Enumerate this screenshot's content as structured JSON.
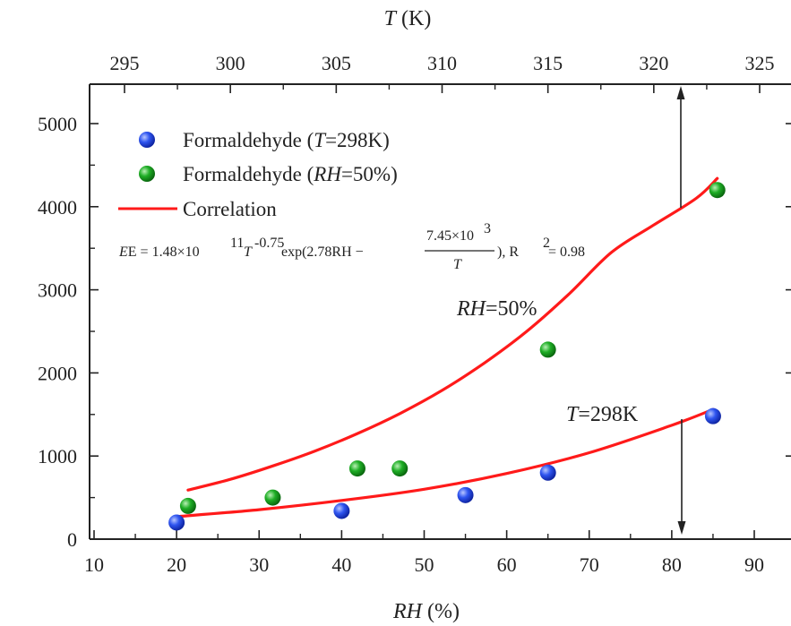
{
  "chart_data": {
    "type": "scatter",
    "x_bottom": {
      "label_var": "RH",
      "label_unit": " (%)",
      "range": [
        10,
        92
      ],
      "ticks": [
        10,
        20,
        30,
        40,
        50,
        60,
        70,
        80,
        90
      ]
    },
    "x_top": {
      "label_var": "T",
      "label_unit": " (K)",
      "range": [
        293.6,
        326.0
      ],
      "ticks": [
        295,
        300,
        305,
        310,
        315,
        320,
        325
      ]
    },
    "y": {
      "label": "",
      "range": [
        0,
        5000
      ],
      "ticks": [
        0,
        1000,
        2000,
        3000,
        4000,
        5000
      ]
    },
    "legend": {
      "position": "top-left",
      "entries": [
        {
          "pre": "Formaldehyde (",
          "var": "T",
          "post": "=298K)"
        },
        {
          "pre": "Formaldehyde (",
          "var": "RH",
          "post": "=50%)"
        },
        {
          "pre": "Correlation",
          "var": "",
          "post": ""
        }
      ]
    },
    "series": [
      {
        "name": "Formaldehyde (T=298K)",
        "axis": "RH",
        "color": "#1f3fe0",
        "marker": "sphere",
        "x": [
          20,
          40,
          55,
          65,
          85
        ],
        "y": [
          200,
          340,
          530,
          800,
          1480
        ]
      },
      {
        "name": "Formaldehyde (RH=50%)",
        "axis": "T",
        "color": "#16a01b",
        "marker": "sphere",
        "x": [
          298,
          302,
          306,
          308,
          315,
          323
        ],
        "y": [
          400,
          500,
          850,
          850,
          2280,
          4200
        ]
      },
      {
        "name": "Correlation",
        "color": "#ff1a1a",
        "line": true,
        "curves": [
          {
            "axis": "RH",
            "x": [
              20,
              30,
              40,
              50,
              60,
              70,
              80,
              85
            ],
            "y": [
              270,
              355,
              465,
              600,
              790,
              1040,
              1370,
              1560
            ]
          },
          {
            "axis": "T",
            "x": [
              298,
              300,
              302,
              304,
              306,
              308,
              310,
              312,
              314,
              316,
              318,
              320,
              322,
              323
            ],
            "y": [
              590,
              720,
              880,
              1060,
              1270,
              1510,
              1790,
              2120,
              2500,
              2950,
              3450,
              3780,
              4100,
              4340
            ]
          }
        ]
      }
    ],
    "annotations": {
      "equation_main": "E = 1.48×10",
      "equation_exp1": "11",
      "equation_T": "T",
      "equation_exp2": "-0.75",
      "equation_exp": " exp(2.78RH −",
      "equation_num": "7.45×10",
      "equation_num_exp": "3",
      "equation_den": "T",
      "equation_tail": "), R",
      "equation_r2exp": "2",
      "equation_r2val": " = 0.98",
      "curve_label_rh": {
        "var": "RH",
        "rest": "=50%"
      },
      "curve_label_t": {
        "var": "T",
        "rest": "=298K"
      }
    }
  }
}
